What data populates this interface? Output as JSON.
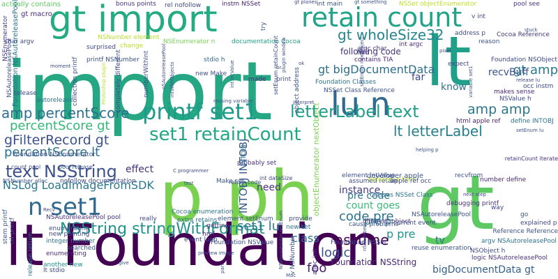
{
  "words": [
    {
      "text": "import",
      "color": "#26a784"
    },
    {
      "text": "p ph",
      "color": "#7ad151"
    },
    {
      "text": "gt",
      "color": "#5ec962"
    },
    {
      "text": "lt Foundation",
      "color": "#440154"
    },
    {
      "text": "gt import",
      "color": "#25ab82"
    },
    {
      "text": "retain count",
      "color": "#20a386"
    },
    {
      "text": "lt",
      "color": "#1fa088"
    },
    {
      "text": "printf set1",
      "color": "#1e9b8a"
    },
    {
      "text": "lu n",
      "color": "#31688e"
    },
    {
      "text": "n set1",
      "color": "#31688e"
    },
    {
      "text": "letterLabel text",
      "color": "#1f9e89"
    },
    {
      "text": "set1 retainCount",
      "color": "#22a785"
    },
    {
      "text": "text NSString",
      "color": "#3b528b"
    },
    {
      "text": "gt wholeSize32",
      "color": "#25858e"
    },
    {
      "text": "NSString stringWithFormat",
      "color": "#21918c"
    },
    {
      "text": "amp percentScore",
      "color": "#2d708e"
    },
    {
      "text": "percentScore gt",
      "color": "#35b779"
    },
    {
      "text": "gFilterRecord gt",
      "color": "#3b528b"
    },
    {
      "text": "percentScore lt",
      "color": "#2c728e"
    },
    {
      "text": "NSLog LoadImageFromSDK",
      "color": "#2a788e"
    },
    {
      "text": "gt bigDocumentData",
      "color": "#2e6f8e"
    },
    {
      "text": "lt letterLabel",
      "color": "#277f8e"
    },
    {
      "text": "gt amp",
      "color": "#297b8e"
    },
    {
      "text": "amp amp",
      "color": "#2a768e"
    },
    {
      "text": "set1 lu",
      "color": "#2a788e"
    },
    {
      "text": "code pre",
      "color": "#2c718e"
    },
    {
      "text": "pre p",
      "color": "#26828e"
    },
    {
      "text": "p pre",
      "color": "#21918c"
    },
    {
      "text": "count goes",
      "color": "#3aba76"
    },
    {
      "text": "assume",
      "color": "#440154"
    },
    {
      "text": "class",
      "color": "#2e6d8e"
    },
    {
      "text": "logic",
      "color": "#3b528b"
    },
    {
      "text": "foo",
      "color": "#482071"
    },
    {
      "text": "bigDocumentData gt",
      "color": "#355f8d"
    },
    {
      "text": "pre code",
      "color": "#2c728e"
    },
    {
      "text": "recvBuff",
      "color": "#3b528b"
    },
    {
      "text": "know",
      "color": "#2d708e"
    },
    {
      "text": "instance",
      "color": "#443983"
    },
    {
      "text": "need",
      "color": "#46327e"
    },
    {
      "text": "effect",
      "color": "#46337f"
    },
    {
      "text": "far",
      "color": "#3e4989"
    },
    {
      "text": "tv",
      "color": "#2c728e"
    },
    {
      "text": "following code",
      "color": "#46327e"
    },
    {
      "text": "lu",
      "color": "#3b528b"
    },
    {
      "text": "Foundation NSString",
      "color": "#482878"
    },
    {
      "text": "INTOBJ INTOBJ",
      "color": "#38598c"
    },
    {
      "text": "objectEnumerator nextObject",
      "color": "#7ad151"
    },
    {
      "text": "actually contains",
      "color": "#5ec962"
    },
    {
      "text": "gt macro",
      "color": "#482878"
    },
    {
      "text": "bonus points",
      "color": "#46337f"
    },
    {
      "text": "rel nofollow",
      "color": "#3e4989"
    },
    {
      "text": "instm NSSet",
      "color": "#482071"
    },
    {
      "text": "int main",
      "color": "#3b528b"
    },
    {
      "text": "NSSet objectEnumerator",
      "color": "#bddf26"
    },
    {
      "text": "pool see",
      "color": "#46327e"
    },
    {
      "text": "v int",
      "color": "#3e4989"
    },
    {
      "text": "NSAutoreleasePool",
      "color": "#3b528b"
    },
    {
      "text": "NSEnumerator",
      "color": "#453781"
    },
    {
      "text": "char argv",
      "color": "#3e4989"
    },
    {
      "text": "NSNumber element",
      "color": "#b8de29"
    },
    {
      "text": "NSEnumerator n",
      "color": "#7ad151"
    },
    {
      "text": "surprised",
      "color": "#3e4989"
    },
    {
      "text": "printf NSNumber",
      "color": "#3b528b"
    },
    {
      "text": "stdio h",
      "color": "#31688e"
    },
    {
      "text": "documentation Cocoa",
      "color": "#20a386"
    },
    {
      "text": "argc char",
      "color": "#46327e"
    },
    {
      "text": "int argc",
      "color": "#482878"
    },
    {
      "text": "address p",
      "color": "#3e4989"
    },
    {
      "text": "Cocoa Reference",
      "color": "#453781"
    },
    {
      "text": "reason",
      "color": "#3b528b"
    },
    {
      "text": "find",
      "color": "#453781"
    },
    {
      "text": "contains TIA",
      "color": "#482173"
    },
    {
      "text": "Foundation NSObject",
      "color": "#3e4989"
    },
    {
      "text": "Foundation Classes",
      "color": "#2c728e"
    },
    {
      "text": "NSSet Class Reference",
      "color": "#3b528b"
    },
    {
      "text": "makes sense",
      "color": "#482878"
    },
    {
      "text": "NSValue h",
      "color": "#3e4989"
    },
    {
      "text": "Foundation NSEnumerator",
      "color": "#3b528b"
    },
    {
      "text": "autorelease",
      "color": "#2c728e"
    },
    {
      "text": "release",
      "color": "#3e4989"
    },
    {
      "text": "new Make",
      "color": "#3b528b"
    },
    {
      "text": "made",
      "color": "#482878"
    },
    {
      "text": "print",
      "color": "#3b528b"
    },
    {
      "text": "expect",
      "color": "#3e4989"
    },
    {
      "text": "html apple ref",
      "color": "#481f70"
    },
    {
      "text": "define INTOBJ",
      "color": "#2c728e"
    },
    {
      "text": "count pool",
      "color": "#3e4989"
    },
    {
      "text": "pool release",
      "color": "#3b528b"
    },
    {
      "text": "Make set",
      "color": "#3b528b"
    },
    {
      "text": "probably set",
      "color": "#46337f"
    },
    {
      "text": "NSNumber alloc",
      "color": "#3b528b"
    },
    {
      "text": "nofollow documentation",
      "color": "#3e4989"
    },
    {
      "text": "Cocoa enumeration",
      "color": "#2c728e"
    },
    {
      "text": "element setEnum",
      "color": "#3b528b"
    },
    {
      "text": "extra retains",
      "color": "#2c728e"
    },
    {
      "text": "getting",
      "color": "#46327e"
    },
    {
      "text": "really",
      "color": "#3e4989"
    },
    {
      "text": "NSAutoreleasePool pool",
      "color": "#46327e"
    },
    {
      "text": "enumerating",
      "color": "#3b528b"
    },
    {
      "text": "new pointing",
      "color": "#3e4989"
    },
    {
      "text": "integer number",
      "color": "#2c728e"
    },
    {
      "text": "searched",
      "color": "#3b528b"
    },
    {
      "text": "enumerating",
      "color": "#482878"
    },
    {
      "text": "another new",
      "color": "#21918c"
    },
    {
      "text": "lt stdio",
      "color": "#3e4989"
    },
    {
      "text": "event loop",
      "color": "#3e4989"
    },
    {
      "text": "href",
      "color": "#482878"
    },
    {
      "text": "Foundation NSValue",
      "color": "#3b528b"
    },
    {
      "text": "Foundation NSSet",
      "color": "#3e4989"
    },
    {
      "text": "new set",
      "color": "#2c728e"
    },
    {
      "text": "provide",
      "color": "#3e4989"
    },
    {
      "text": "element intValue",
      "color": "#3b528b"
    },
    {
      "text": "assumed retain",
      "color": "#3e4989"
    },
    {
      "text": "Classes NSSet Class",
      "color": "#2c728e"
    },
    {
      "text": "NSAutoreleasePool",
      "color": "#3b528b"
    },
    {
      "text": "different object",
      "color": "#46327e"
    },
    {
      "text": "cause problems",
      "color": "#3b528b"
    },
    {
      "text": "current event",
      "color": "#3e4989"
    },
    {
      "text": "reuse enumeration",
      "color": "#3b528b"
    },
    {
      "text": "logic NSAutoreleasePool",
      "color": "#46327e"
    },
    {
      "text": "NSObject h",
      "color": "#3e4989"
    },
    {
      "text": "argv NSAutoreleasePool",
      "color": "#2c728e"
    },
    {
      "text": "Reference html",
      "color": "#b8de29"
    },
    {
      "text": "developer apple",
      "color": "#3b528b"
    },
    {
      "text": "apple ref occ",
      "color": "#3e4989"
    },
    {
      "text": "recvfrom",
      "color": "#3b528b"
    },
    {
      "text": "number define",
      "color": "#482878"
    },
    {
      "text": "way",
      "color": "#3e4989"
    },
    {
      "text": "go",
      "color": "#3b528b"
    },
    {
      "text": "explained p",
      "color": "#3e4989"
    },
    {
      "text": "Reference Reference",
      "color": "#3b528b"
    },
    {
      "text": "debugging printf",
      "color": "#46327e"
    },
    {
      "text": "occ instm",
      "color": "#3e4989"
    },
    {
      "text": "numberWithInt",
      "color": "#3b528b"
    },
    {
      "text": "setEnum retainCount",
      "color": "#3e4989"
    },
    {
      "text": "object address",
      "color": "#3b528b"
    },
    {
      "text": "stem printf",
      "color": "#3b528b"
    },
    {
      "text": "nil printf",
      "color": "#3e4989"
    },
    {
      "text": "release return",
      "color": "#2c728e"
    },
    {
      "text": "Foundation NSAutoreleasePool",
      "color": "#2c728e"
    },
    {
      "text": "collection printf",
      "color": "#3e4989"
    },
    {
      "text": "completely different",
      "color": "#3e4989"
    },
    {
      "text": "v NSNumber",
      "color": "#3b528b"
    },
    {
      "text": "alloc init",
      "color": "#46327e"
    },
    {
      "text": "INTOBJ",
      "color": "#2c728e"
    },
    {
      "text": "int dataSize",
      "color": "#3e4989"
    },
    {
      "text": "return code",
      "color": "#3b528b"
    },
    {
      "text": "retainCount iterate",
      "color": "#46327e"
    },
    {
      "text": "gt planes",
      "color": "#3e4989"
    },
    {
      "text": "gt something",
      "color": "#3b528b"
    },
    {
      "text": "pixel",
      "color": "#3e4989"
    },
    {
      "text": "stuck",
      "color": "#3b528b"
    },
    {
      "text": "change",
      "color": "#b8de29"
    },
    {
      "text": "moment",
      "color": "#3e4989"
    },
    {
      "text": "variable set1",
      "color": "#3b528b"
    },
    {
      "text": "release lu",
      "color": "#3e4989"
    },
    {
      "text": "setEnum lu",
      "color": "#3b528b"
    },
    {
      "text": "next step",
      "color": "#3e4989"
    },
    {
      "text": "helping p",
      "color": "#3b528b"
    },
    {
      "text": "Recv",
      "color": "#3e4989"
    },
    {
      "text": "give",
      "color": "#3b528b"
    },
    {
      "text": "part",
      "color": "#3e4989"
    },
    {
      "text": "Mac",
      "color": "#3b528b"
    },
    {
      "text": "test",
      "color": "#3e4989"
    },
    {
      "text": "br",
      "color": "#3b528b"
    },
    {
      "text": "ok",
      "color": "#3e4989"
    },
    {
      "text": "try",
      "color": "#3b528b"
    },
    {
      "text": "C programmer",
      "color": "#3e4989"
    },
    {
      "text": "reusing variable",
      "color": "#3b528b"
    },
    {
      "text": "interpret",
      "color": "#3e4989"
    },
    {
      "text": "preview image",
      "color": "#3b528b"
    },
    {
      "text": "Photoshop plugin",
      "color": "#b8de29"
    },
    {
      "text": "plugin window",
      "color": "#3e4989"
    },
    {
      "text": "setEnum nextObject",
      "color": "#3b528b"
    },
    {
      "text": "NSEnumerator setEnum",
      "color": "#3e4989"
    },
    {
      "text": "int intValue",
      "color": "#3b528b"
    },
    {
      "text": "nSAutoreleasePool",
      "color": "#3e4989"
    },
    {
      "text": "intWithObjects",
      "color": "#3b528b"
    },
    {
      "text": "nSNumber",
      "color": "#3e4989"
    }
  ]
}
